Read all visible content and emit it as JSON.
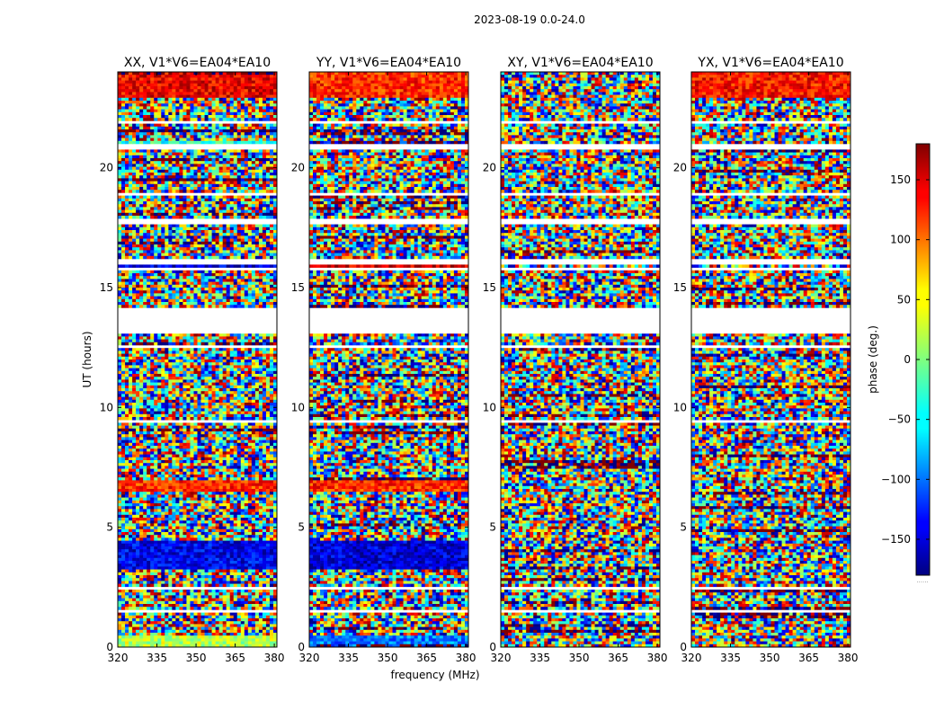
{
  "chart_data": {
    "type": "heatmap",
    "suptitle": "2023-08-19 0.0-24.0",
    "panels": [
      {
        "title": "XX, V1*V6=EA04*EA10",
        "key": "XX"
      },
      {
        "title": "YY, V1*V6=EA04*EA10",
        "key": "YY"
      },
      {
        "title": "XY, V1*V6=EA04*EA10",
        "key": "XY"
      },
      {
        "title": "YX, V1*V6=EA04*EA10",
        "key": "YX"
      }
    ],
    "xlabel": "frequency (MHz)",
    "ylabel": "UT (hours)",
    "xlim": [
      320,
      381
    ],
    "ylim": [
      0,
      24
    ],
    "xticks": [
      320,
      335,
      350,
      365,
      380
    ],
    "yticks": [
      0,
      5,
      10,
      15,
      20
    ],
    "colorbar": {
      "label": "phase (deg.)",
      "range": [
        -180,
        180
      ],
      "ticks": [
        150,
        100,
        50,
        0,
        -50,
        -100,
        -150
      ],
      "tick_labels": [
        "150",
        "100",
        "50",
        "0",
        "−50",
        "−100",
        "−150"
      ],
      "colormap": "jet",
      "under_label": "......"
    },
    "flagged_bands_ut": [
      [
        13.1,
        14.1
      ],
      [
        18.8,
        19.0
      ],
      [
        17.6,
        17.9
      ],
      [
        16.0,
        16.2
      ],
      [
        15.7,
        15.8
      ],
      [
        20.8,
        20.95
      ],
      [
        12.5,
        12.6
      ],
      [
        9.35,
        9.45
      ],
      [
        2.45,
        2.55
      ],
      [
        1.45,
        1.6
      ],
      [
        0.6,
        0.65
      ],
      [
        21.9,
        22.0
      ]
    ],
    "coherent_bands_ut": {
      "XX": [
        {
          "range": [
            0.0,
            0.5
          ],
          "phase": 20
        },
        {
          "range": [
            3.3,
            4.4
          ],
          "phase": -140
        },
        {
          "range": [
            6.5,
            7.0
          ],
          "phase": 120
        },
        {
          "range": [
            15.9,
            16.0
          ],
          "phase": -150
        },
        {
          "range": [
            20.85,
            21.1
          ],
          "phase": -30
        },
        {
          "range": [
            22.9,
            24.0
          ],
          "phase": 140
        }
      ],
      "YY": [
        {
          "range": [
            0.0,
            0.5
          ],
          "phase": -90
        },
        {
          "range": [
            3.3,
            4.4
          ],
          "phase": -150
        },
        {
          "range": [
            6.5,
            7.0
          ],
          "phase": 120
        },
        {
          "range": [
            15.9,
            16.0
          ],
          "phase": 150
        },
        {
          "range": [
            20.85,
            21.1
          ],
          "phase": -120
        },
        {
          "range": [
            22.9,
            24.0
          ],
          "phase": 120
        }
      ],
      "XY": [],
      "YX": [
        {
          "range": [
            22.9,
            24.0
          ],
          "phase": 130
        }
      ]
    }
  }
}
